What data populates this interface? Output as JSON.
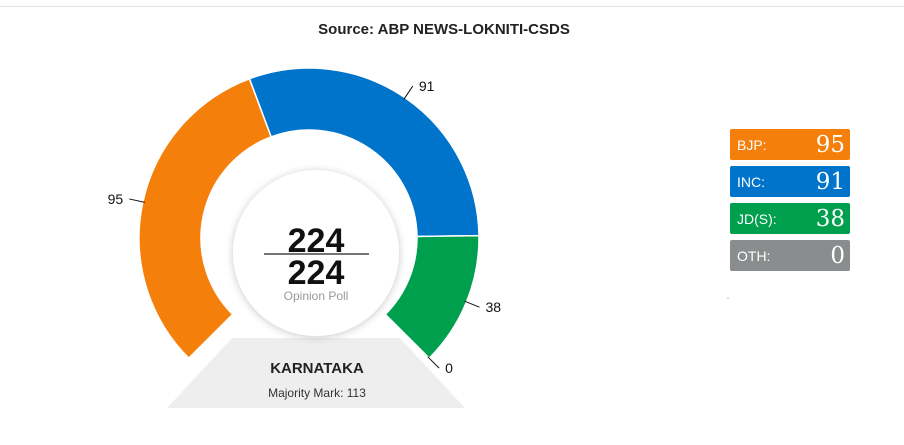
{
  "source": "Source: ABP NEWS-LOKNITI-CSDS",
  "chart_data": {
    "type": "pie",
    "style": "semi-donut gauge",
    "total_seats": 224,
    "seats_polled": 224,
    "center_caption": "Opinion Poll",
    "state": "KARNATAKA",
    "majority_label": "Majority Mark: 113",
    "majority_mark": 113,
    "series": [
      {
        "name": "BJP",
        "legend_label": "BJP:",
        "value": 95,
        "color": "#f57f0b"
      },
      {
        "name": "INC",
        "legend_label": "INC:",
        "value": 91,
        "color": "#0073cb"
      },
      {
        "name": "JD(S)",
        "legend_label": "JD(S):",
        "value": 38,
        "color": "#009f4d"
      },
      {
        "name": "OTH",
        "legend_label": "OTH:",
        "value": 0,
        "color": "#8a8d8e"
      }
    ]
  }
}
